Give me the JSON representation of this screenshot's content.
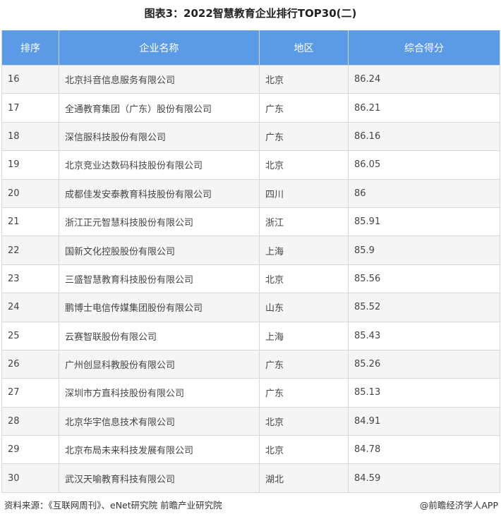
{
  "title": "图表3：2022智慧教育企业排行TOP30(二)",
  "colors": {
    "header_bg": "#5b9be6",
    "header_text": "#ffffff"
  },
  "table": {
    "headers": [
      "排序",
      "企业名称",
      "地区",
      "综合得分"
    ],
    "rows": [
      [
        "16",
        "北京抖音信息服务有限公司",
        "北京",
        "86.24"
      ],
      [
        "17",
        "全通教育集团（广东）股份有限公司",
        "广东",
        "86.21"
      ],
      [
        "18",
        "深信服科技股份有限公司",
        "广东",
        "86.16"
      ],
      [
        "19",
        "北京竞业达数码科技股份有限公司",
        "北京",
        "86.05"
      ],
      [
        "20",
        "成都佳发安泰教育科技股份有限公司",
        "四川",
        "86"
      ],
      [
        "21",
        "浙江正元智慧科技股份有限公司",
        "浙江",
        "85.91"
      ],
      [
        "22",
        "国新文化控股股份有限公司",
        "上海",
        "85.9"
      ],
      [
        "23",
        "三盛智慧教育科技股份有限公司",
        "北京",
        "85.56"
      ],
      [
        "24",
        "鹏博士电信传媒集团股份有限公司",
        "山东",
        "85.52"
      ],
      [
        "25",
        "云赛智联股份有限公司",
        "上海",
        "85.43"
      ],
      [
        "26",
        "广州创显科教股份有限公司",
        "广东",
        "85.26"
      ],
      [
        "27",
        "深圳市方直科技股份有限公司",
        "广东",
        "85.13"
      ],
      [
        "28",
        "北京华宇信息技术有限公司",
        "北京",
        "84.91"
      ],
      [
        "29",
        "北京布局未来科技发展有限公司",
        "北京",
        "84.78"
      ],
      [
        "30",
        "武汉天喻教育科技有限公司",
        "湖北",
        "84.59"
      ]
    ]
  },
  "footer": {
    "source": "资料来源：《互联网周刊》、eNet研究院 前瞻产业研究院",
    "credit": "@前瞻经济学人APP"
  }
}
